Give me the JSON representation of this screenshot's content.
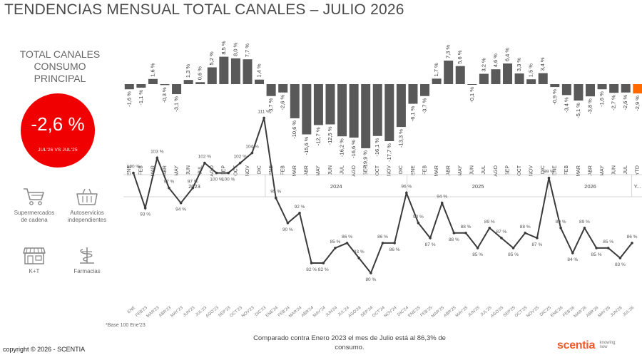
{
  "page": {
    "title": "TENDENCIAS MENSUAL TOTAL CANALES – JULIO 2026",
    "kpi_title_line1": "TOTAL CANALES",
    "kpi_title_line2": "CONSUMO PRINCIPAL",
    "kpi_value": "-2,6 %",
    "kpi_subtitle": "JUL'26 VS JUL'25",
    "footnote": "*Base 100 Ene'23",
    "comparison_line1": "Comparado contra Enero 2023 el mes de Julio está al 86,3% de",
    "comparison_line2": "consumo.",
    "copyright": "copyright © 2026 - SCENTIA",
    "logo_word": "scentia",
    "logo_tag_line1": "knowing",
    "logo_tag_line2": "now",
    "accent_color": "#f00000",
    "bar_color": "#595959",
    "ytd_color": "#ff6a00"
  },
  "channels": [
    {
      "icon": "shopping-cart-icon",
      "line1": "Supermercados",
      "line2": "de cadena"
    },
    {
      "icon": "basket-icon",
      "line1": "Autoservicios",
      "line2": "independientes"
    },
    {
      "icon": "store-icon",
      "line1": "K+T",
      "line2": ""
    },
    {
      "icon": "pharmacy-icon",
      "line1": "Farmacias",
      "line2": ""
    }
  ],
  "chart_data": [
    {
      "type": "bar",
      "categories": [
        "ENE",
        "FEB",
        "MAR",
        "ABR",
        "MAY",
        "JUN",
        "JUL",
        "AGO",
        "SEP",
        "OCT",
        "NOV",
        "DIC",
        "ENE",
        "FEB",
        "MAR",
        "ABR",
        "MAY",
        "JUN",
        "JUL",
        "AGO",
        "SEP",
        "OCT",
        "NOV",
        "DIC",
        "ENE",
        "FEB",
        "MAR",
        "ABR",
        "MAY",
        "JUN",
        "JUL",
        "AGO",
        "SEP",
        "OCT",
        "NOV",
        "DIC",
        "ENE",
        "FEB",
        "MAR",
        "ABR",
        "MAY",
        "JUN",
        "JUL",
        "YTD"
      ],
      "labels": [
        "-1,6 %",
        "-1,1 %",
        "1,6 %",
        "-0,3 %",
        "-3,1 %",
        "1,3 %",
        "0,6 %",
        "5,2 %",
        "8,5 %",
        "8,0 %",
        "7,7 %",
        "1,4 %",
        "-3,7 %",
        "-2,6 %",
        "-10,6 %",
        "-15,6 %",
        "-12,7 %",
        "-12,5 %",
        "-16,2 %",
        "-16,6 %",
        "-19,9 %",
        "-16,1 %",
        "-17,7 %",
        "-13,3 %",
        "-6,1 %",
        "-3,7 %",
        "1,7 %",
        "7,3 %",
        "5,6 %",
        "-0,1 %",
        "3,2 %",
        "4,6 %",
        "6,4 %",
        "3,3 %",
        "1,5 %",
        "3,4 %",
        "-0,9 %",
        "-3,4 %",
        "-5,1 %",
        "-3,8 %",
        "-1,6 %",
        "-2,7 %",
        "-2,6 %",
        "-2,9 %"
      ],
      "values": [
        -1.6,
        -1.1,
        1.6,
        -0.3,
        -3.1,
        1.3,
        0.6,
        5.2,
        8.5,
        8.0,
        7.7,
        1.4,
        -3.7,
        -2.6,
        -10.6,
        -15.6,
        -12.7,
        -12.5,
        -16.2,
        -16.6,
        -19.9,
        -16.1,
        -17.7,
        -13.3,
        -6.1,
        -3.7,
        1.7,
        7.3,
        5.6,
        -0.1,
        3.2,
        4.6,
        6.4,
        3.3,
        1.5,
        3.4,
        -0.9,
        -3.4,
        -5.1,
        -3.8,
        -1.6,
        -2.7,
        -2.6,
        -2.9
      ],
      "years": [
        {
          "label": "2023",
          "start": 0,
          "count": 12
        },
        {
          "label": "2024",
          "start": 12,
          "count": 12
        },
        {
          "label": "2025",
          "start": 24,
          "count": 12
        },
        {
          "label": "2026",
          "start": 36,
          "count": 7
        },
        {
          "label": "Y...",
          "start": 43,
          "count": 1
        }
      ],
      "unit": "%"
    },
    {
      "type": "line",
      "x": [
        "ENE'23",
        "FEB'23",
        "MAR'23",
        "ABR'23",
        "MAY'23",
        "JUN'23",
        "JUL'23",
        "AGO'23",
        "SEP'23",
        "OCT'23",
        "NOV'23",
        "DIC'23",
        "ENE'24",
        "FEB'24",
        "MAR'24",
        "ABR'24",
        "MAY'24",
        "JUN'24",
        "JUL'24",
        "AGO'24",
        "SEP'24",
        "OCT'24",
        "NOV'24",
        "DIC'24",
        "ENE'25",
        "FEB'25",
        "MAR'25",
        "ABR'25",
        "MAY'25",
        "JUN'25",
        "JUL'25",
        "AGO'25",
        "SEP'25",
        "OCT'25",
        "NOV'25",
        "DIC'25",
        "ENE'26",
        "FEB'26",
        "MAR'26",
        "ABR'26",
        "MAY'26",
        "JUN'26",
        "JUL'26"
      ],
      "x_display": [
        "ENE",
        "FEB'23",
        "MAR'23",
        "ABR'23",
        "MAY'23",
        "JUN'23",
        "JUL'23",
        "AGO'23",
        "SEP'23",
        "OCT'23",
        "NOV'23",
        "DIC'23",
        "ENE'24",
        "FEB'24",
        "MAR'24",
        "ABR'24",
        "MAY'24",
        "JUN'24",
        "JUL'24",
        "AGO'24",
        "SEP'24",
        "OCT'24",
        "NOV'24",
        "DIC'24",
        "ENE'25",
        "FEB'25",
        "MAR'25",
        "ABR'25",
        "MAY'25",
        "JUN'25",
        "JUL'25",
        "AGO'25",
        "SEP'25",
        "OCT'25",
        "NOV'25",
        "DIC'25",
        "ENE'26",
        "FEB'26",
        "MAR'26",
        "ABR'26",
        "MAY'26",
        "JUN'26",
        "JUL'26"
      ],
      "values": [
        100,
        93,
        103,
        97,
        94,
        97,
        102,
        100,
        100,
        102,
        104,
        111,
        95,
        90,
        92,
        82,
        82,
        85,
        86,
        83,
        80,
        86,
        86,
        96,
        90,
        87,
        94,
        88,
        88,
        85,
        89,
        87,
        85,
        88,
        87,
        99,
        89,
        84,
        89,
        85,
        85,
        83,
        86
      ],
      "labels": [
        "100 %",
        "93 %",
        "103 %",
        "97 %",
        "94 %",
        "97 %",
        "102 %",
        "100 %",
        "100 %",
        "102 %",
        "104 %",
        "111 %",
        "95 %",
        "90 %",
        "92 %",
        "82 %",
        "82 %",
        "85 %",
        "86 %",
        "83 %",
        "80 %",
        "86 %",
        "86 %",
        "96 %",
        "90 %",
        "87 %",
        "94 %",
        "88 %",
        "88 %",
        "85 %",
        "89 %",
        "87 %",
        "85 %",
        "88 %",
        "87 %",
        "99 %",
        "89 %",
        "84 %",
        "89 %",
        "85 %",
        "85 %",
        "83 %",
        "86 %"
      ],
      "ylim": [
        75,
        115
      ]
    }
  ]
}
